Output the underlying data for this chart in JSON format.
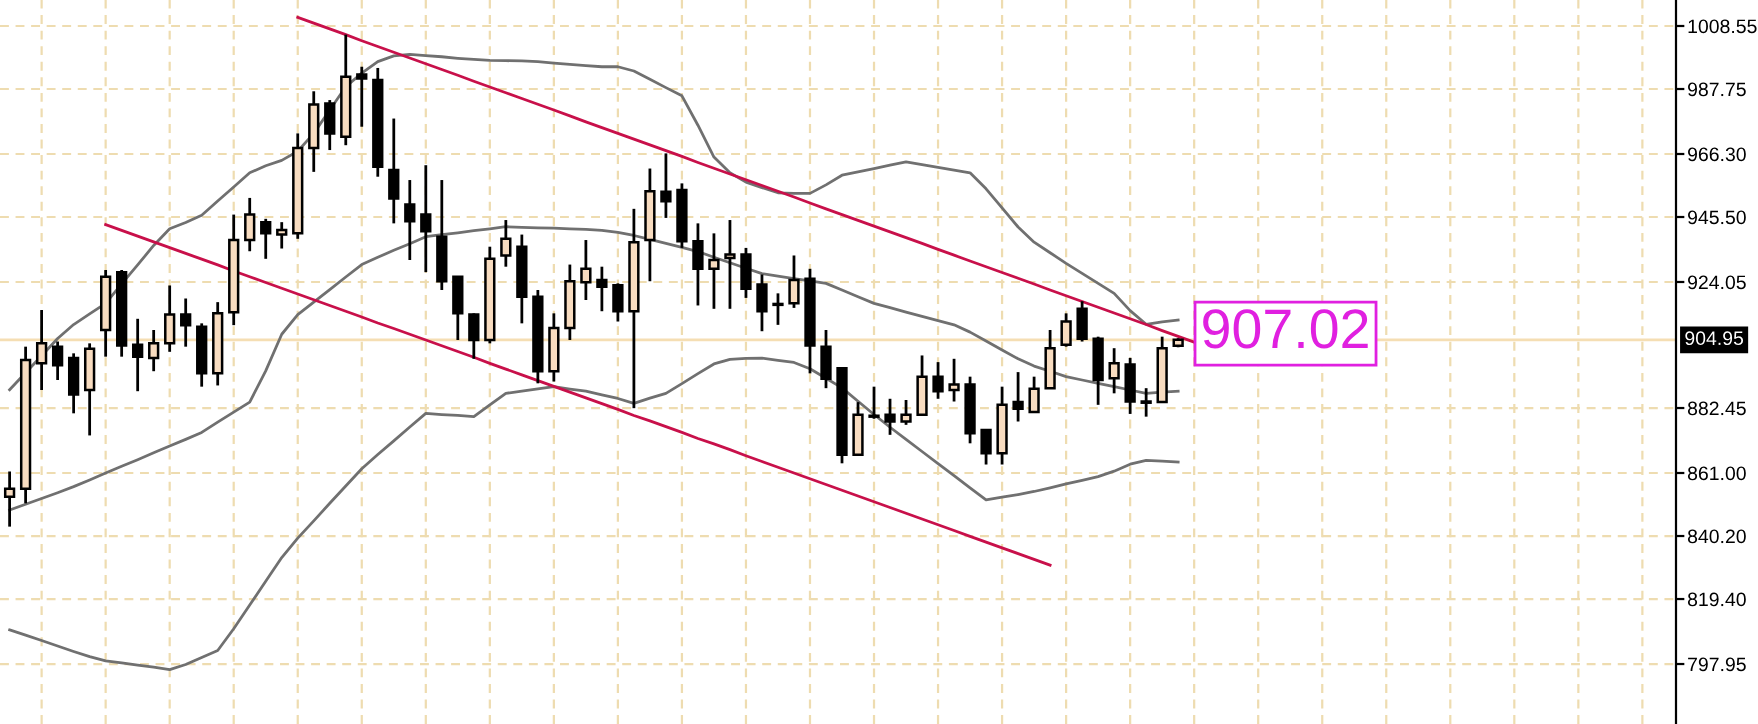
{
  "chart_data": {
    "type": "candlestick",
    "categories": [
      null,
      null,
      null,
      null,
      null,
      null,
      null,
      null,
      null,
      null,
      null,
      null,
      null,
      null,
      null,
      null,
      null,
      null,
      null,
      null,
      null,
      null,
      null,
      null,
      null,
      null,
      null,
      null,
      null,
      null,
      null,
      null,
      null,
      null,
      null,
      null,
      null,
      null,
      null,
      null,
      null,
      null,
      null,
      null,
      null,
      null,
      null,
      null,
      null,
      null,
      null,
      null,
      null,
      null,
      null,
      null,
      null,
      null,
      null,
      null,
      null,
      null,
      null,
      null,
      null,
      null,
      null,
      null,
      null,
      null,
      null,
      null,
      null,
      null,
      null,
      null,
      null,
      null,
      null,
      null,
      null,
      null,
      null,
      null,
      null,
      null,
      null,
      null,
      null,
      null,
      null,
      null,
      null,
      null,
      null,
      null,
      null,
      null,
      null,
      null,
      null,
      null,
      null,
      null,
      null
    ],
    "ohlc": [
      [
        853.2,
        861.5,
        843.3,
        855.8
      ],
      [
        855.8,
        902.7,
        851.0,
        898.3
      ],
      [
        897.2,
        914.8,
        888.4,
        903.8
      ],
      [
        902.7,
        904.4,
        891.7,
        896.6
      ],
      [
        899.0,
        900.5,
        880.7,
        886.9
      ],
      [
        888.4,
        903.8,
        873.4,
        902.0
      ],
      [
        908.2,
        928.0,
        899.4,
        925.8
      ],
      [
        927.3,
        928.0,
        899.4,
        903.1
      ],
      [
        903.3,
        911.9,
        888.0,
        899.4
      ],
      [
        899.0,
        908.2,
        894.6,
        903.8
      ],
      [
        903.8,
        922.9,
        901.0,
        913.3
      ],
      [
        913.3,
        918.6,
        902.7,
        909.8
      ],
      [
        909.3,
        910.4,
        889.5,
        893.9
      ],
      [
        893.9,
        917.4,
        889.9,
        913.7
      ],
      [
        914.1,
        946.3,
        909.8,
        937.9
      ],
      [
        937.9,
        951.8,
        934.2,
        946.3
      ],
      [
        943.8,
        944.9,
        931.7,
        940.1
      ],
      [
        939.7,
        943.8,
        935.1,
        941.2
      ],
      [
        940.1,
        973.1,
        938.3,
        968.3
      ],
      [
        968.3,
        987.0,
        960.4,
        982.6
      ],
      [
        983.0,
        984.1,
        967.6,
        973.1
      ],
      [
        972.0,
        1005.7,
        969.2,
        991.8
      ],
      [
        992.5,
        995.1,
        975.3,
        991.2
      ],
      [
        990.7,
        994.7,
        958.8,
        962.1
      ],
      [
        961.0,
        978.0,
        943.4,
        951.6
      ],
      [
        949.6,
        957.7,
        931.3,
        944.1
      ],
      [
        946.3,
        962.6,
        927.3,
        940.8
      ],
      [
        939.0,
        957.7,
        921.4,
        924.3
      ],
      [
        925.8,
        925.8,
        904.9,
        913.7
      ],
      [
        913.3,
        913.7,
        898.7,
        904.9
      ],
      [
        904.9,
        935.7,
        903.8,
        931.7
      ],
      [
        932.8,
        944.5,
        929.1,
        938.3
      ],
      [
        935.7,
        939.7,
        910.4,
        919.2
      ],
      [
        919.2,
        921.4,
        890.6,
        894.6
      ],
      [
        894.6,
        913.7,
        891.2,
        908.9
      ],
      [
        908.9,
        929.8,
        904.9,
        924.3
      ],
      [
        924.0,
        937.9,
        918.1,
        928.4
      ],
      [
        924.7,
        929.1,
        914.4,
        922.5
      ],
      [
        923.0,
        923.6,
        911.0,
        914.4
      ],
      [
        914.4,
        948.2,
        882.4,
        937.2
      ],
      [
        937.9,
        961.5,
        924.3,
        954.0
      ],
      [
        953.8,
        966.5,
        945.2,
        950.7
      ],
      [
        954.4,
        956.6,
        935.3,
        937.5
      ],
      [
        937.5,
        943.4,
        916.3,
        928.4
      ],
      [
        928.4,
        940.1,
        915.2,
        931.3
      ],
      [
        932.0,
        944.5,
        915.2,
        933.1
      ],
      [
        933.1,
        935.3,
        918.8,
        921.8
      ],
      [
        923.2,
        926.5,
        907.8,
        914.4
      ],
      [
        916.5,
        920.3,
        909.9,
        916.5
      ],
      [
        917.0,
        932.8,
        915.5,
        924.7
      ],
      [
        925.1,
        928.4,
        893.9,
        903.1
      ],
      [
        902.7,
        908.2,
        889.0,
        892.1
      ],
      [
        895.6,
        895.6,
        864.2,
        867.0
      ],
      [
        867.0,
        884.4,
        867.0,
        880.2
      ],
      [
        879.6,
        889.5,
        878.9,
        879.6
      ],
      [
        880.2,
        885.5,
        873.6,
        878.0
      ],
      [
        878.0,
        885.1,
        876.9,
        880.2
      ],
      [
        880.2,
        899.8,
        880.2,
        892.8
      ],
      [
        892.8,
        897.6,
        885.5,
        888.0
      ],
      [
        888.4,
        898.7,
        884.6,
        890.2
      ],
      [
        890.2,
        892.8,
        870.8,
        874.1
      ],
      [
        875.2,
        875.2,
        863.8,
        867.5
      ],
      [
        867.5,
        889.5,
        863.8,
        883.5
      ],
      [
        884.4,
        894.3,
        878.0,
        882.2
      ],
      [
        881.1,
        892.8,
        881.1,
        888.8
      ],
      [
        889.0,
        908.2,
        889.0,
        902.2
      ],
      [
        903.3,
        913.7,
        902.7,
        911.0
      ],
      [
        915.2,
        917.7,
        904.4,
        905.3
      ],
      [
        905.3,
        906.0,
        883.5,
        891.7
      ],
      [
        892.3,
        902.2,
        887.3,
        897.2
      ],
      [
        896.8,
        899.0,
        880.5,
        884.6
      ],
      [
        884.6,
        889.0,
        879.6,
        884.2
      ],
      [
        884.4,
        906.0,
        884.2,
        902.2
      ],
      [
        903.0,
        905.5,
        902.5,
        904.95
      ],
      null,
      null,
      null,
      null,
      null,
      null,
      null,
      null,
      null,
      null,
      null,
      null,
      null,
      null,
      null,
      null,
      null,
      null,
      null,
      null,
      null,
      null,
      null,
      null,
      null,
      null,
      null,
      null,
      null,
      null,
      null
    ],
    "colors": [
      "#f8dcc0",
      "#f8dcc0",
      "#f8dcc0",
      "#000000",
      "#000000",
      "#f8dcc0",
      "#f8dcc0",
      "#000000",
      "#000000",
      "#f8dcc0",
      "#f8dcc0",
      "#000000",
      "#000000",
      "#f8dcc0",
      "#f8dcc0",
      "#f8dcc0",
      "#000000",
      "#f8dcc0",
      "#f8dcc0",
      "#f8dcc0",
      "#000000",
      "#f8dcc0",
      "#000000",
      "#000000",
      "#000000",
      "#000000",
      "#000000",
      "#000000",
      "#000000",
      "#000000",
      "#f8dcc0",
      "#f8dcc0",
      "#000000",
      "#000000",
      "#f8dcc0",
      "#f8dcc0",
      "#f8dcc0",
      "#000000",
      "#000000",
      "#f8dcc0",
      "#f8dcc0",
      "#000000",
      "#000000",
      "#000000",
      "#f8dcc0",
      "#f8dcc0",
      "#000000",
      "#000000",
      "#000000",
      "#f8dcc0",
      "#000000",
      "#000000",
      "#000000",
      "#f8dcc0",
      "#000000",
      "#000000",
      "#f8dcc0",
      "#f8dcc0",
      "#000000",
      "#f8dcc0",
      "#000000",
      "#000000",
      "#f8dcc0",
      "#000000",
      "#f8dcc0",
      "#f8dcc0",
      "#f8dcc0",
      "#000000",
      "#000000",
      "#f8dcc0",
      "#000000",
      "#000000",
      "#f8dcc0",
      "#f8dcc0",
      null,
      null,
      null,
      null,
      null,
      null,
      null,
      null,
      null,
      null,
      null,
      null,
      null,
      null,
      null,
      null,
      null,
      null,
      null,
      null,
      null,
      null,
      null,
      null,
      null,
      null,
      null,
      null,
      null,
      null,
      null
    ],
    "series": [
      {
        "type": "line",
        "color": "#707070",
        "values": [
          888.5,
          894.1,
          899.7,
          905.4,
          910.0,
          913.5,
          917.0,
          923.4,
          929.7,
          936.1,
          941.6,
          943.7,
          946.1,
          950.8,
          955.4,
          960.1,
          962.4,
          964.2,
          967.2,
          973.1,
          980.8,
          988.5,
          993.0,
          996.8,
          998.7,
          999.2,
          998.8,
          998.4,
          997.9,
          997.5,
          997.2,
          997.1,
          997.0,
          996.8,
          996.3,
          995.9,
          995.5,
          995.1,
          995.1,
          993.7,
          991.0,
          988.2,
          985.5,
          975.8,
          965.3,
          960.1,
          957.0,
          955.2,
          953.5,
          953.3,
          953.3,
          956.1,
          959.3,
          960.4,
          961.5,
          962.6,
          963.7,
          962.8,
          961.9,
          961.0,
          960.1,
          954.8,
          948.5,
          942.2,
          937.2,
          933.7,
          930.2,
          926.9,
          923.6,
          920.3,
          914.6,
          910.1,
          910.9,
          911.5,
          null,
          null,
          null,
          null,
          null,
          null,
          null,
          null,
          null,
          null,
          null,
          null,
          null,
          null,
          null,
          null,
          null,
          null,
          null,
          null,
          null,
          null,
          null,
          null,
          null,
          null,
          null,
          null,
          null,
          null,
          null
        ]
      },
      {
        "type": "line",
        "color": "#707070",
        "values": [
          848.8,
          850.7,
          852.6,
          854.5,
          856.5,
          858.7,
          861.0,
          863.2,
          865.4,
          867.7,
          869.9,
          872.1,
          874.4,
          877.8,
          881.1,
          884.4,
          894.7,
          906.8,
          913.3,
          917.4,
          921.5,
          925.7,
          929.8,
          932.2,
          934.5,
          936.7,
          939.0,
          939.7,
          940.3,
          941.0,
          941.6,
          942.3,
          942.1,
          941.9,
          941.8,
          941.6,
          941.4,
          941.1,
          940.4,
          939.4,
          938.1,
          936.8,
          935.5,
          934.1,
          932.2,
          930.4,
          928.6,
          926.8,
          926.0,
          925.2,
          924.4,
          923.6,
          921.4,
          919.2,
          917.0,
          915.6,
          914.1,
          912.7,
          911.3,
          909.9,
          907.5,
          904.6,
          901.6,
          898.7,
          896.3,
          894.6,
          892.8,
          891.7,
          890.6,
          889.5,
          888.4,
          887.3,
          887.7,
          888.0,
          null,
          null,
          null,
          null,
          null,
          null,
          null,
          null,
          null,
          null,
          null,
          null,
          null,
          null,
          null,
          null,
          null,
          null,
          null,
          null,
          null,
          null,
          null,
          null,
          null,
          null,
          null,
          null,
          null,
          null,
          null
        ]
      },
      {
        "type": "line",
        "color": "#707070",
        "values": [
          809.2,
          807.5,
          805.7,
          803.9,
          802.1,
          800.4,
          799.0,
          798.3,
          797.6,
          796.9,
          796.1,
          797.8,
          800.1,
          802.4,
          809.6,
          817.4,
          825.3,
          833.1,
          839.5,
          845.2,
          851.0,
          856.7,
          862.4,
          867.1,
          871.6,
          876.2,
          880.7,
          880.3,
          880.0,
          879.6,
          883.5,
          887.3,
          888.0,
          888.8,
          889.5,
          888.7,
          888.0,
          886.8,
          885.6,
          884.0,
          885.7,
          887.3,
          890.5,
          893.8,
          897.0,
          898.5,
          898.8,
          898.9,
          898.2,
          897.5,
          895.4,
          892.3,
          889.1,
          884.7,
          880.3,
          876.1,
          872.1,
          868.1,
          864.1,
          860.1,
          856.1,
          852.1,
          853.0,
          853.9,
          854.9,
          856.1,
          857.4,
          858.6,
          859.8,
          861.6,
          863.9,
          865.2,
          864.9,
          864.6,
          null,
          null,
          null,
          null,
          null,
          null,
          null,
          null,
          null,
          null,
          null,
          null,
          null,
          null,
          null,
          null,
          null,
          null,
          null,
          null,
          null,
          null,
          null,
          null,
          null,
          null,
          null,
          null,
          null,
          null,
          null
        ]
      },
      {
        "type": "line",
        "color": "#c8104a",
        "values": [
          null,
          null,
          null,
          null,
          null,
          null,
          null,
          null,
          null,
          null,
          null,
          null,
          null,
          null,
          null,
          null,
          null,
          null,
          1011.4,
          1009.5,
          1007.6,
          1005.7,
          1003.7,
          1001.8,
          999.9,
          998.0,
          996.1,
          994.2,
          992.3,
          990.3,
          988.4,
          986.5,
          984.6,
          982.7,
          980.8,
          978.9,
          976.9,
          975.0,
          973.1,
          971.2,
          969.3,
          967.4,
          965.5,
          963.5,
          961.6,
          959.7,
          957.8,
          955.9,
          954.0,
          952.1,
          950.1,
          948.2,
          946.3,
          944.4,
          942.5,
          940.6,
          938.7,
          936.8,
          934.8,
          932.9,
          931.0,
          929.1,
          927.2,
          925.3,
          923.4,
          921.4,
          919.5,
          917.6,
          915.7,
          913.8,
          911.9,
          910.0,
          908.0,
          906.1,
          904.2,
          null,
          null,
          null,
          null,
          null,
          null,
          null,
          null,
          null,
          null,
          null,
          null,
          null,
          null,
          null,
          null,
          null,
          null,
          null,
          null,
          null,
          null,
          null,
          null,
          null,
          null,
          null,
          null,
          null,
          null
        ]
      },
      {
        "type": "line",
        "color": "#c8104a",
        "values": [
          null,
          null,
          null,
          null,
          null,
          null,
          943.0,
          941.1,
          939.2,
          937.3,
          935.4,
          933.5,
          931.6,
          929.7,
          927.7,
          925.8,
          923.9,
          922.0,
          920.1,
          918.2,
          916.3,
          914.4,
          912.5,
          910.5,
          908.7,
          906.8,
          904.9,
          903.0,
          901.1,
          899.2,
          897.2,
          895.3,
          893.4,
          891.5,
          889.6,
          887.7,
          885.8,
          883.9,
          882.0,
          880.0,
          878.2,
          876.3,
          874.4,
          872.4,
          870.6,
          868.7,
          866.7,
          864.8,
          862.9,
          861.0,
          859.1,
          857.2,
          855.3,
          853.4,
          851.5,
          849.6,
          847.7,
          845.8,
          843.9,
          842.0,
          840.1,
          838.2,
          836.3,
          834.4,
          832.5,
          830.6,
          null,
          null,
          null,
          null,
          null,
          null,
          null,
          null,
          null,
          null,
          null,
          null,
          null,
          null,
          null,
          null,
          null,
          null,
          null,
          null,
          null,
          null,
          null,
          null,
          null,
          null,
          null,
          null,
          null,
          null,
          null,
          null,
          null,
          null,
          null,
          null,
          null,
          null,
          null
        ]
      }
    ],
    "ylim": [
      778.15,
      1017.13
    ],
    "yticks": [
      {
        "value": 797.95,
        "label": "797.95"
      },
      {
        "value": 819.4,
        "label": "819.40"
      },
      {
        "value": 840.2,
        "label": "840.20"
      },
      {
        "value": 861.0,
        "label": "861.00"
      },
      {
        "value": 882.45,
        "label": "882.45"
      },
      {
        "value": 924.05,
        "label": "924.05"
      },
      {
        "value": 945.5,
        "label": "945.50"
      },
      {
        "value": 966.3,
        "label": "966.30"
      },
      {
        "value": 987.75,
        "label": "987.75"
      },
      {
        "value": 1008.55,
        "label": "1008.55"
      }
    ],
    "tick_labels": "y",
    "grid": true,
    "ref_lines": [
      {
        "axis": "y",
        "value": 904.95,
        "label": "904.95",
        "color": "#f5deb3"
      }
    ],
    "annotations": [
      {
        "text": "907.02",
        "y": 907.02
      }
    ]
  }
}
